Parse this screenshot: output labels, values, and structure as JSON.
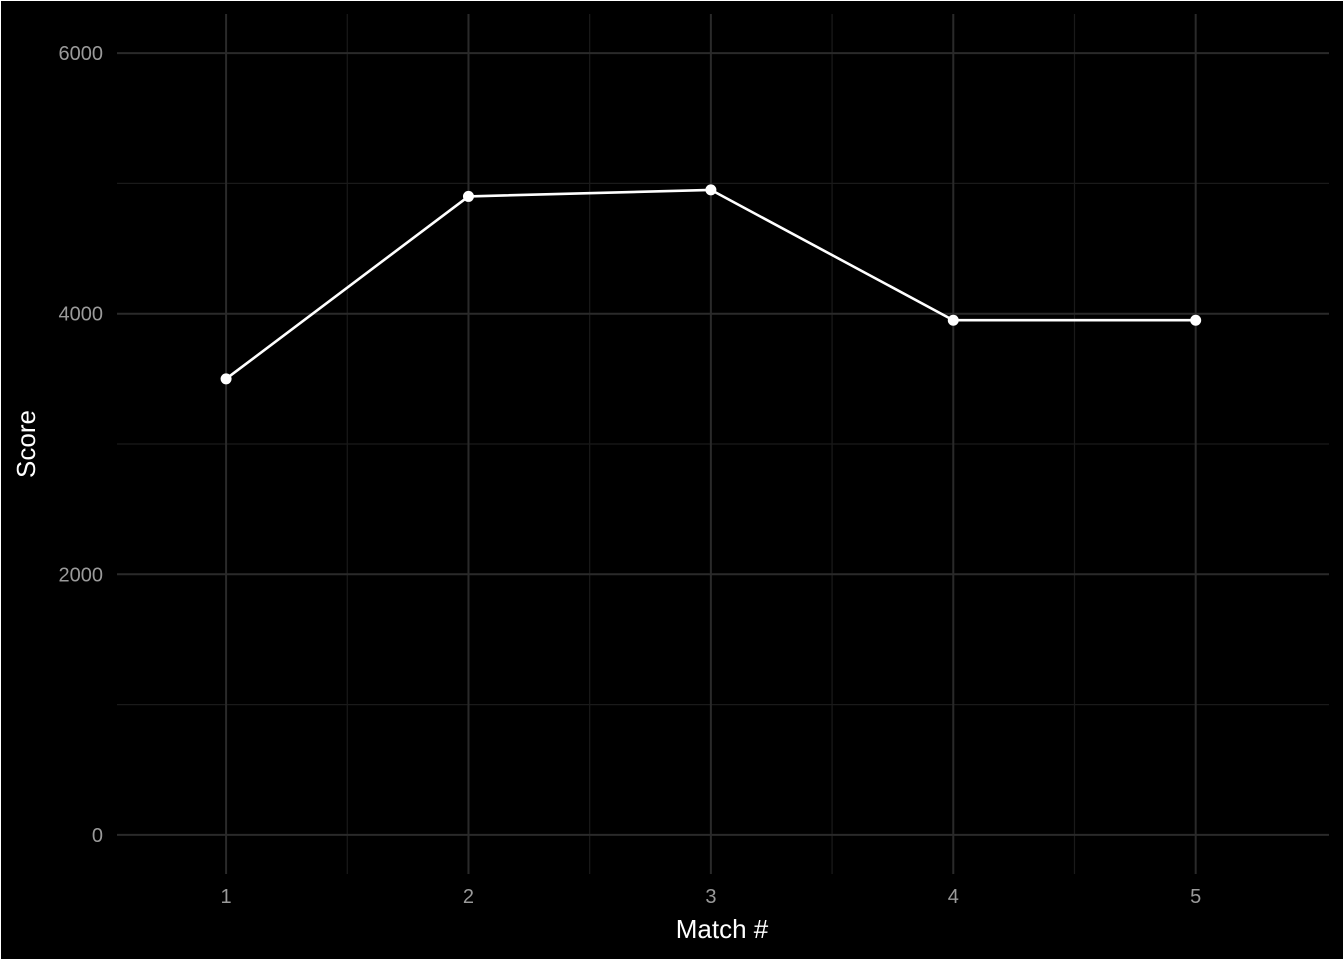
{
  "chart_data": {
    "type": "line",
    "title": "",
    "xlabel": "Match #",
    "ylabel": "Score",
    "x": [
      1,
      2,
      3,
      4,
      5
    ],
    "series": [
      {
        "values": [
          3500,
          4900,
          4950,
          3950,
          3950
        ]
      }
    ],
    "xlim": [
      0.55,
      5.55
    ],
    "ylim": [
      -300,
      6300
    ],
    "x_ticks": [
      1,
      2,
      3,
      4,
      5
    ],
    "x_minor_ticks": [
      1.5,
      2.5,
      3.5,
      4.5
    ],
    "y_ticks": [
      0,
      2000,
      4000,
      6000
    ],
    "y_minor_ticks": [
      1000,
      3000,
      5000
    ],
    "grid": true,
    "legend": "none",
    "colors": {
      "background": "#000000",
      "grid_major": "#2a2a2a",
      "grid_minor": "#1a1a1a",
      "line": "#ffffff",
      "points": "#ffffff",
      "tick_text": "#9a9a9a",
      "axis_title": "#ffffff"
    }
  }
}
